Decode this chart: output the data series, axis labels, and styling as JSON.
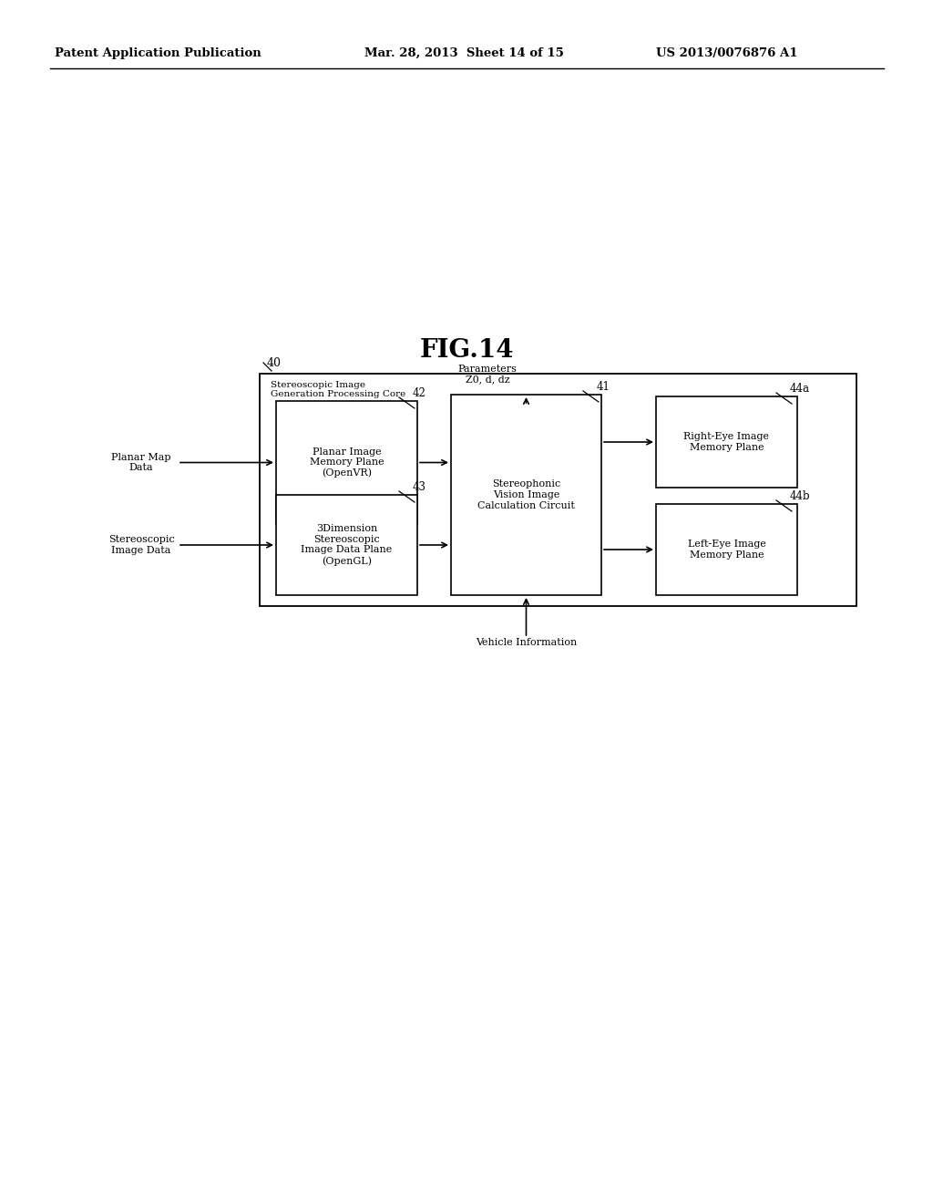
{
  "bg_color": "#ffffff",
  "header_left": "Patent Application Publication",
  "header_center": "Mar. 28, 2013  Sheet 14 of 15",
  "header_right": "US 2013/0076876 A1",
  "fig_title": "FIG.14",
  "outer_label": "40",
  "outer_inner_label": "Stereoscopic Image\nGeneration Processing Core",
  "params_label": "Parameters\nZ0, d, dz",
  "box42_label": "42",
  "box42_text": "Planar Image\nMemory Plane\n(OpenVR)",
  "box43_label": "43",
  "box43_text": "3Dimension\nStereoscopic\nImage Data Plane\n(OpenGL)",
  "box41_label": "41",
  "box41_text": "Stereophonic\nVision Image\nCalculation Circuit",
  "box44a_label": "44a",
  "box44a_text": "Right-Eye Image\nMemory Plane",
  "box44b_label": "44b",
  "box44b_text": "Left-Eye Image\nMemory Plane",
  "left_label1_text": "Planar Map\nData",
  "left_label2_text": "Stereoscopic\nImage Data",
  "vehicle_info_text": "Vehicle Information"
}
